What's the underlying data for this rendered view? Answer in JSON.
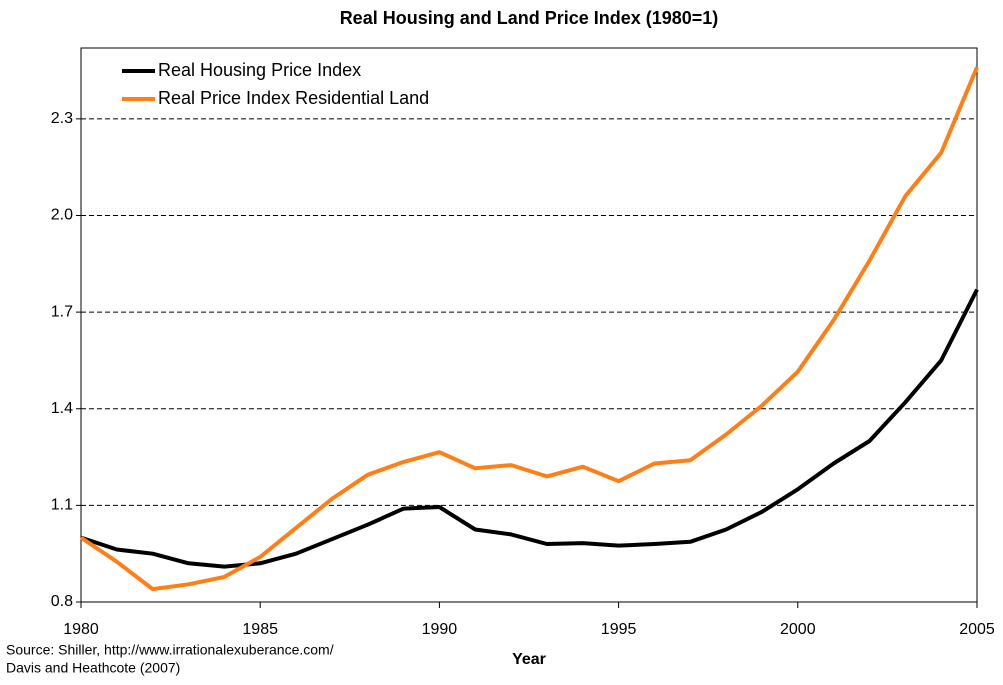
{
  "chart_data": {
    "type": "line",
    "title": "Real Housing and Land Price Index (1980=1)",
    "x_label": "Year",
    "annotations": [
      "Source: Shiller, http://www.irrationalexuberance.com/",
      "Davis and Heathcote (2007)"
    ],
    "x": [
      1980,
      1981,
      1982,
      1983,
      1984,
      1985,
      1986,
      1987,
      1988,
      1989,
      1990,
      1991,
      1992,
      1993,
      1994,
      1995,
      1996,
      1997,
      1998,
      1999,
      2000,
      2001,
      2002,
      2003,
      2004,
      2005
    ],
    "series": [
      {
        "name": "Real Housing Price Index",
        "color": "#000000",
        "values": [
          1.0,
          0.963,
          0.95,
          0.92,
          0.91,
          0.92,
          0.95,
          0.995,
          1.04,
          1.09,
          1.095,
          1.025,
          1.01,
          0.98,
          0.983,
          0.975,
          0.98,
          0.987,
          1.025,
          1.08,
          1.15,
          1.23,
          1.3,
          1.42,
          1.55,
          1.77
        ]
      },
      {
        "name": "Real Price Index Residential Land",
        "color": "#ff7f16",
        "values": [
          1.0,
          0.925,
          0.84,
          0.855,
          0.878,
          0.94,
          1.03,
          1.12,
          1.195,
          1.235,
          1.265,
          1.215,
          1.225,
          1.19,
          1.22,
          1.175,
          1.23,
          1.24,
          1.32,
          1.41,
          1.515,
          1.675,
          1.86,
          2.06,
          2.195,
          2.46
        ]
      }
    ],
    "xlim": [
      1980,
      2005
    ],
    "xticks": [
      1980,
      1985,
      1990,
      1995,
      2000,
      2005
    ],
    "ylim": [
      0.8,
      2.52
    ],
    "yticks": [
      0.8,
      1.1,
      1.4,
      1.7,
      {
        "value": 2,
        "label": "2.0"
      },
      2.3
    ],
    "grid": true,
    "legend": "top-left"
  }
}
